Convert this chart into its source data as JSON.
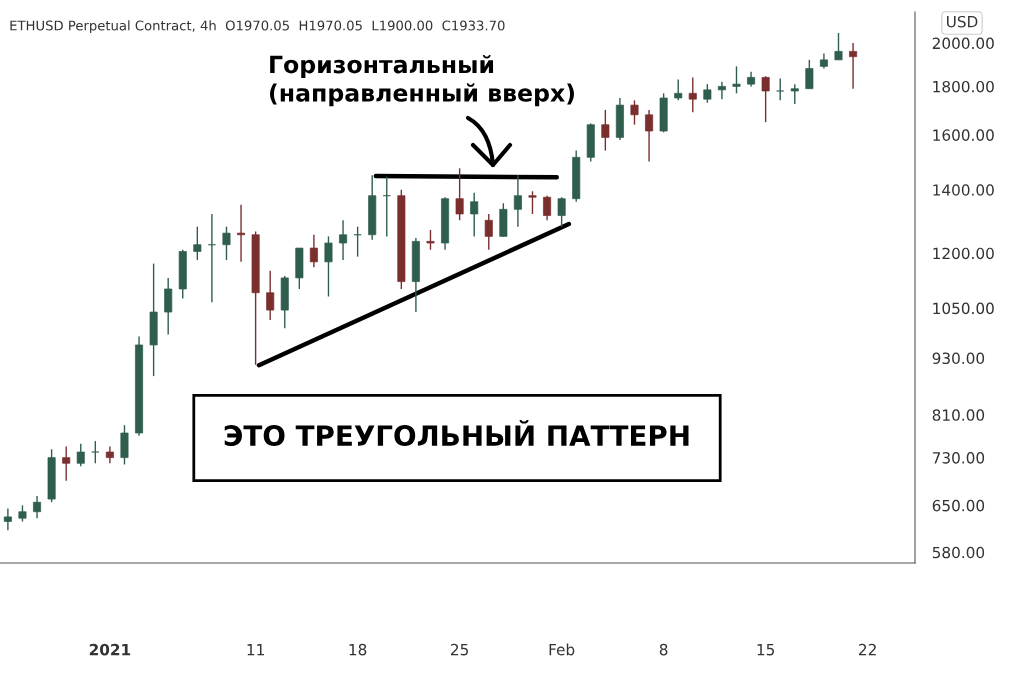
{
  "chart_data": {
    "type": "candlestick",
    "title": "ETHUSD Perpetual Contract, 4h  O1970.05  H1970.05  L1900.00  C1933.70",
    "annotations": [
      "Горизонтальный\n(направленный вверх)",
      "ЭТО ТРЕУГОЛЬНЫЙ ПАТТЕРН",
      "USD"
    ],
    "x": [
      "2020-12-25",
      "2020-12-26",
      "2020-12-27",
      "2020-12-28",
      "2020-12-29",
      "2020-12-30",
      "2020-12-31",
      "2021-01-01",
      "2021-01-02",
      "2021-01-03",
      "2021-01-04",
      "2021-01-05",
      "2021-01-06",
      "2021-01-07",
      "2021-01-08",
      "2021-01-09",
      "2021-01-10",
      "2021-01-11",
      "2021-01-12",
      "2021-01-13",
      "2021-01-14",
      "2021-01-15",
      "2021-01-16",
      "2021-01-17",
      "2021-01-18",
      "2021-01-19",
      "2021-01-20",
      "2021-01-21",
      "2021-01-22",
      "2021-01-23",
      "2021-01-24",
      "2021-01-25",
      "2021-01-26",
      "2021-01-27",
      "2021-01-28",
      "2021-01-29",
      "2021-01-30",
      "2021-01-31",
      "2021-02-01",
      "2021-02-02",
      "2021-02-03",
      "2021-02-04",
      "2021-02-05",
      "2021-02-06",
      "2021-02-07",
      "2021-02-08",
      "2021-02-09",
      "2021-02-10",
      "2021-02-11",
      "2021-02-12",
      "2021-02-13",
      "2021-02-14",
      "2021-02-15",
      "2021-02-16",
      "2021-02-17",
      "2021-02-18",
      "2021-02-19",
      "2021-02-20",
      "2021-02-21"
    ],
    "ohlc": [
      [
        625,
        645,
        612,
        632
      ],
      [
        630,
        650,
        625,
        640
      ],
      [
        640,
        665,
        630,
        655
      ],
      [
        660,
        745,
        655,
        730
      ],
      [
        730,
        750,
        690,
        720
      ],
      [
        720,
        755,
        715,
        740
      ],
      [
        740,
        760,
        720,
        740
      ],
      [
        740,
        750,
        720,
        730
      ],
      [
        730,
        790,
        718,
        775
      ],
      [
        775,
        980,
        770,
        960
      ],
      [
        960,
        1170,
        890,
        1040
      ],
      [
        1040,
        1130,
        985,
        1100
      ],
      [
        1100,
        1210,
        1075,
        1205
      ],
      [
        1205,
        1280,
        1180,
        1225
      ],
      [
        1225,
        1320,
        1065,
        1225
      ],
      [
        1225,
        1280,
        1180,
        1260
      ],
      [
        1260,
        1350,
        1175,
        1255
      ],
      [
        1255,
        1265,
        915,
        1090
      ],
      [
        1090,
        1150,
        1020,
        1045
      ],
      [
        1045,
        1135,
        1000,
        1130
      ],
      [
        1130,
        1215,
        1100,
        1215
      ],
      [
        1215,
        1255,
        1160,
        1175
      ],
      [
        1175,
        1250,
        1080,
        1230
      ],
      [
        1230,
        1300,
        1180,
        1255
      ],
      [
        1255,
        1280,
        1190,
        1255
      ],
      [
        1255,
        1450,
        1240,
        1380
      ],
      [
        1380,
        1445,
        1250,
        1380
      ],
      [
        1380,
        1400,
        1100,
        1120
      ],
      [
        1120,
        1245,
        1040,
        1235
      ],
      [
        1235,
        1270,
        1210,
        1230
      ],
      [
        1230,
        1375,
        1210,
        1370
      ],
      [
        1370,
        1475,
        1300,
        1320
      ],
      [
        1320,
        1390,
        1250,
        1360
      ],
      [
        1300,
        1320,
        1210,
        1250
      ],
      [
        1250,
        1355,
        1250,
        1335
      ],
      [
        1335,
        1450,
        1280,
        1380
      ],
      [
        1380,
        1395,
        1320,
        1375
      ],
      [
        1375,
        1380,
        1300,
        1315
      ],
      [
        1315,
        1375,
        1280,
        1370
      ],
      [
        1370,
        1540,
        1360,
        1515
      ],
      [
        1515,
        1645,
        1500,
        1640
      ],
      [
        1640,
        1700,
        1540,
        1590
      ],
      [
        1590,
        1750,
        1580,
        1720
      ],
      [
        1720,
        1740,
        1640,
        1680
      ],
      [
        1680,
        1700,
        1500,
        1615
      ],
      [
        1615,
        1770,
        1610,
        1750
      ],
      [
        1750,
        1830,
        1740,
        1770
      ],
      [
        1770,
        1840,
        1690,
        1745
      ],
      [
        1745,
        1810,
        1730,
        1785
      ],
      [
        1785,
        1820,
        1745,
        1800
      ],
      [
        1800,
        1890,
        1770,
        1810
      ],
      [
        1810,
        1865,
        1800,
        1840
      ],
      [
        1840,
        1845,
        1650,
        1780
      ],
      [
        1780,
        1835,
        1740,
        1780
      ],
      [
        1780,
        1810,
        1725,
        1790
      ],
      [
        1790,
        1920,
        1790,
        1880
      ],
      [
        1890,
        1950,
        1880,
        1920
      ],
      [
        1920,
        2050,
        1920,
        1960
      ],
      [
        1960,
        2000,
        1790,
        1935
      ]
    ],
    "colors": [
      "#2f5d4e",
      "#2f5d4e",
      "#2f5d4e",
      "#2f5d4e",
      "#7a2e2e",
      "#2f5d4e",
      "#2f5d4e",
      "#7a2e2e",
      "#2f5d4e",
      "#2f5d4e",
      "#2f5d4e",
      "#2f5d4e",
      "#2f5d4e",
      "#2f5d4e",
      "#2f5d4e",
      "#2f5d4e",
      "#7a2e2e",
      "#7a2e2e",
      "#7a2e2e",
      "#2f5d4e",
      "#2f5d4e",
      "#7a2e2e",
      "#2f5d4e",
      "#2f5d4e",
      "#2f5d4e",
      "#2f5d4e",
      "#2f5d4e",
      "#7a2e2e",
      "#2f5d4e",
      "#7a2e2e",
      "#2f5d4e",
      "#7a2e2e",
      "#2f5d4e",
      "#7a2e2e",
      "#2f5d4e",
      "#2f5d4e",
      "#7a2e2e",
      "#7a2e2e",
      "#2f5d4e",
      "#2f5d4e",
      "#2f5d4e",
      "#7a2e2e",
      "#2f5d4e",
      "#7a2e2e",
      "#7a2e2e",
      "#2f5d4e",
      "#2f5d4e",
      "#7a2e2e",
      "#2f5d4e",
      "#2f5d4e",
      "#2f5d4e",
      "#2f5d4e",
      "#7a2e2e",
      "#2f5d4e",
      "#2f5d4e",
      "#2f5d4e",
      "#2f5d4e",
      "#2f5d4e",
      "#7a2e2e"
    ],
    "series": [
      {
        "type": "line",
        "color": "#000000",
        "x": [
          "2021-01-19T06:00",
          "2021-01-31T16:00"
        ],
        "values": [
          1448,
          1443
        ]
      },
      {
        "type": "line",
        "color": "#000000",
        "x": [
          "2021-01-11T05:30",
          "2021-02-01T12:00"
        ],
        "values": [
          914,
          1288
        ]
      }
    ],
    "log": true,
    "xlim": [
      "2020-12-24T11:00",
      "2021-02-25T06:00"
    ],
    "xticks": [
      {
        "value": "2021-01-01",
        "label": "2021"
      },
      {
        "value": "2021-01-11",
        "label": "11"
      },
      {
        "value": "2021-01-18",
        "label": "18"
      },
      {
        "value": "2021-01-25",
        "label": "25"
      },
      {
        "value": "2021-02-01",
        "label": "Feb"
      },
      {
        "value": "2021-02-08",
        "label": "8"
      },
      {
        "value": "2021-02-15",
        "label": "15"
      },
      {
        "value": "2021-02-22",
        "label": "22"
      }
    ],
    "ylim": [
      565,
      2157
    ],
    "yticks": [
      {
        "value": 580,
        "label": "580.00"
      },
      {
        "value": 650,
        "label": "650.00"
      },
      {
        "value": 730,
        "label": "730.00"
      },
      {
        "value": 810,
        "label": "810.00"
      },
      {
        "value": 930,
        "label": "930.00"
      },
      {
        "value": 1050,
        "label": "1050.00"
      },
      {
        "value": 1200,
        "label": "1200.00"
      },
      {
        "value": 1400,
        "label": "1400.00"
      },
      {
        "value": 1600,
        "label": "1600.00"
      },
      {
        "value": 1800,
        "label": "1800.00"
      },
      {
        "value": 2000,
        "label": "2000.00"
      }
    ],
    "grid": false,
    "legend": false
  }
}
